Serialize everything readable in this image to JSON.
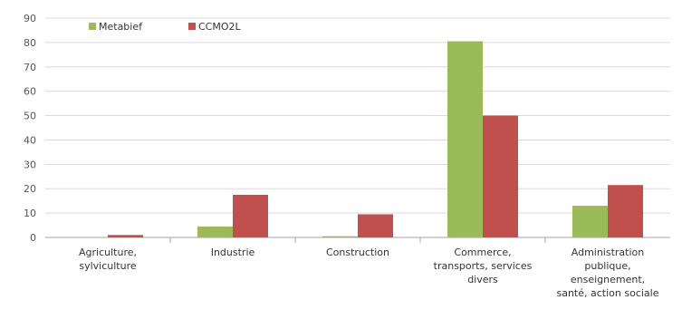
{
  "chart_data": {
    "type": "bar",
    "title": "",
    "xlabel": "",
    "ylabel": "",
    "ylim": [
      0,
      90
    ],
    "yticks": [
      0,
      10,
      20,
      30,
      40,
      50,
      60,
      70,
      80,
      90
    ],
    "grid": true,
    "legend_position": "top-left",
    "categories": [
      [
        "Agriculture,",
        "sylviculture"
      ],
      [
        "Industrie"
      ],
      [
        "Construction"
      ],
      [
        "Commerce,",
        "transports, services",
        "divers"
      ],
      [
        "Administration",
        "publique,",
        "enseignement,",
        "santé, action sociale"
      ]
    ],
    "series": [
      {
        "name": "Metabief",
        "color": "#9BBB59",
        "values": [
          0,
          4.5,
          0.5,
          80.5,
          13
        ]
      },
      {
        "name": "CCMO2L",
        "color": "#C0504D",
        "values": [
          1,
          17.5,
          9.5,
          50,
          21.5
        ]
      }
    ]
  }
}
